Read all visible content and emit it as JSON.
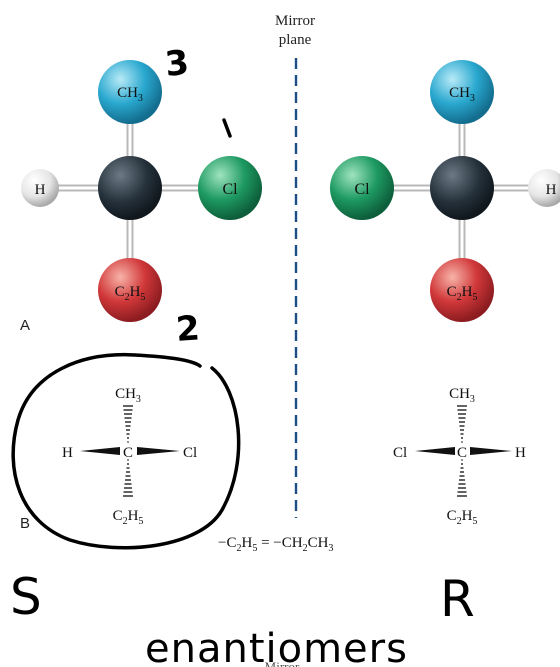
{
  "mirror": {
    "label_line1": "Mirror",
    "label_line2": "plane",
    "bottom_partial": "Mirror"
  },
  "panel_labels": {
    "a": "A",
    "b": "B"
  },
  "atoms": {
    "ch3": "CH",
    "ch3_sub": "3",
    "cl": "Cl",
    "h": "H",
    "c2h5_c": "C",
    "c2h5_2": "2",
    "c2h5_h": "H",
    "c2h5_5": "5"
  },
  "wedge_labels": {
    "h": "H",
    "cl": "Cl",
    "c": "C",
    "ch3": "CH",
    "ch3_sub": "3",
    "c2h5_c": "C",
    "c2h5_2": "2",
    "c2h5_h": "H",
    "c2h5_5": "5"
  },
  "formula": {
    "lhs_c": "−C",
    "lhs_2": "2",
    "lhs_h": "H",
    "lhs_5": "5",
    "eq": " = −CH",
    "rhs_2": "2",
    "rhs_ch": "CH",
    "rhs_3": "3"
  },
  "handwritten": {
    "num_3": "3",
    "num_1": "1",
    "num_2": "2",
    "s": "S",
    "r": "R",
    "enantiomers": "enantiomers"
  },
  "colors": {
    "carbon": "#1f2a33",
    "methyl": "#27a6cc",
    "chlorine": "#1e9a62",
    "ethyl": "#d1383a",
    "hydrogen": "#eeeeee",
    "mirror": "#1d4f86",
    "ink": "#000000"
  }
}
